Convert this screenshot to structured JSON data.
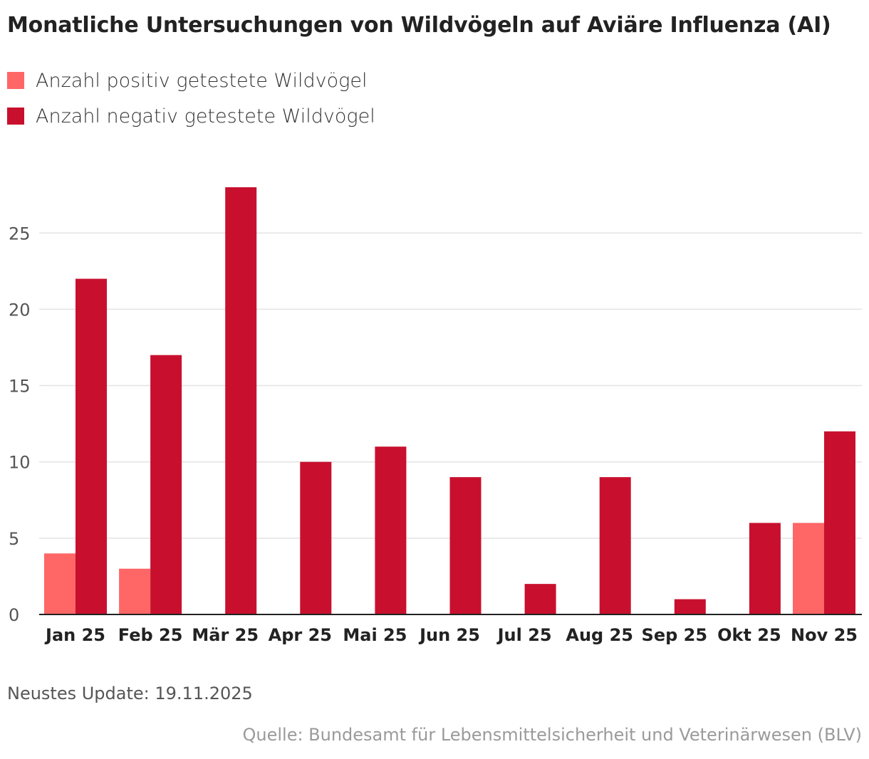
{
  "chart_data": {
    "type": "bar",
    "title": "Monatliche Untersuchungen von Wildvögeln auf Aviäre Influenza (AI)",
    "categories": [
      "Jan 25",
      "Feb 25",
      "Mär 25",
      "Apr 25",
      "Mai 25",
      "Jun 25",
      "Jul 25",
      "Aug 25",
      "Sep 25",
      "Okt 25",
      "Nov 25"
    ],
    "series": [
      {
        "name": "Anzahl positiv getestete Wildvögel",
        "color": "#ff6666",
        "values": [
          4,
          3,
          0,
          0,
          0,
          0,
          0,
          0,
          0,
          0,
          6
        ]
      },
      {
        "name": "Anzahl negativ getestete Wildvögel",
        "color": "#c8102e",
        "values": [
          22,
          17,
          28,
          10,
          11,
          9,
          2,
          9,
          1,
          6,
          12
        ]
      }
    ],
    "ylim": [
      0,
      28
    ],
    "yticks": [
      0,
      5,
      10,
      15,
      20,
      25
    ],
    "grid": true,
    "legend": "top-left",
    "xlabel": "",
    "ylabel": ""
  },
  "footer": {
    "update": "Neustes Update: 19.11.2025",
    "source": "Quelle: Bundesamt für Lebensmittelsicherheit und Veterinärwesen (BLV)"
  }
}
